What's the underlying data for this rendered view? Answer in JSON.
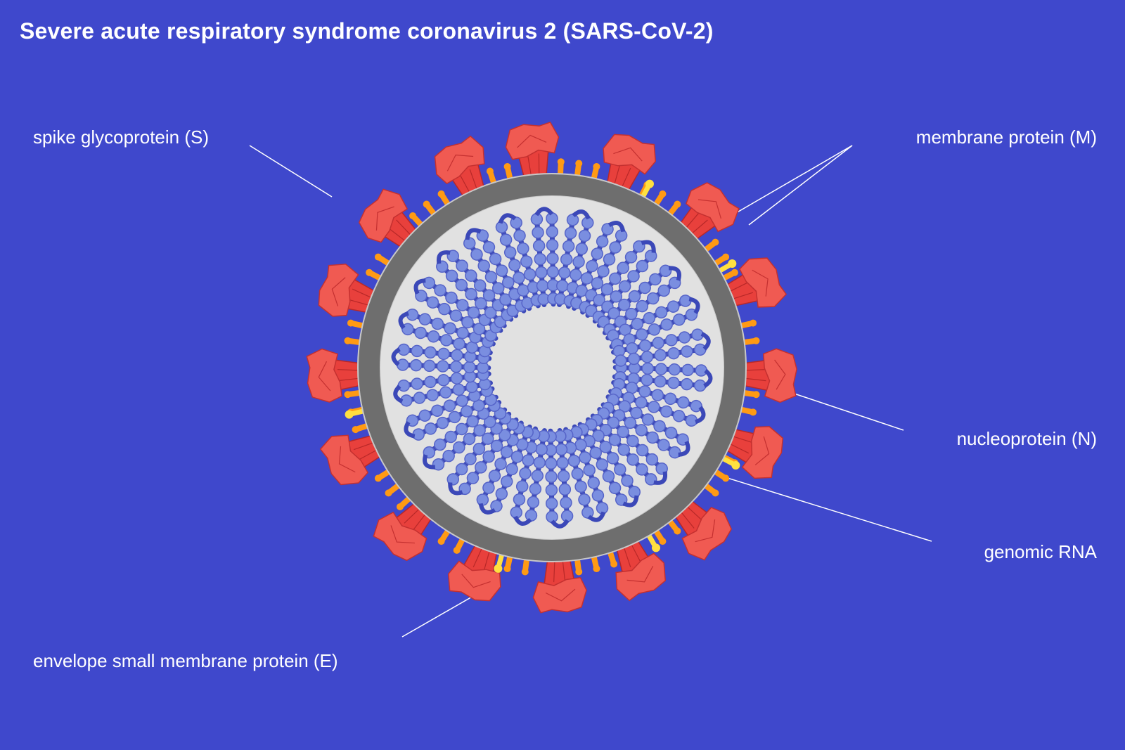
{
  "title": "Severe acute respiratory syndrome coronavirus 2 (SARS-CoV-2)",
  "labels": {
    "spike": "spike glycoprotein (S)",
    "membrane": "membrane protein (M)",
    "nucleoprotein": "nucleoprotein (N)",
    "rna": "genomic RNA",
    "envelope": "envelope small membrane protein (E)"
  },
  "colors": {
    "background": "#3f48cc",
    "spike": "#e8403c",
    "spike_head": "#f05a52",
    "membrane_protein": "#ff9a14",
    "envelope_protein": "#ffe040",
    "lipid_membrane": "#6e6e6e",
    "interior": "#e1e1e1",
    "nucleoprotein": "#7a8ee0",
    "rna": "#3b48b8",
    "leader_line": "#ffffff"
  }
}
